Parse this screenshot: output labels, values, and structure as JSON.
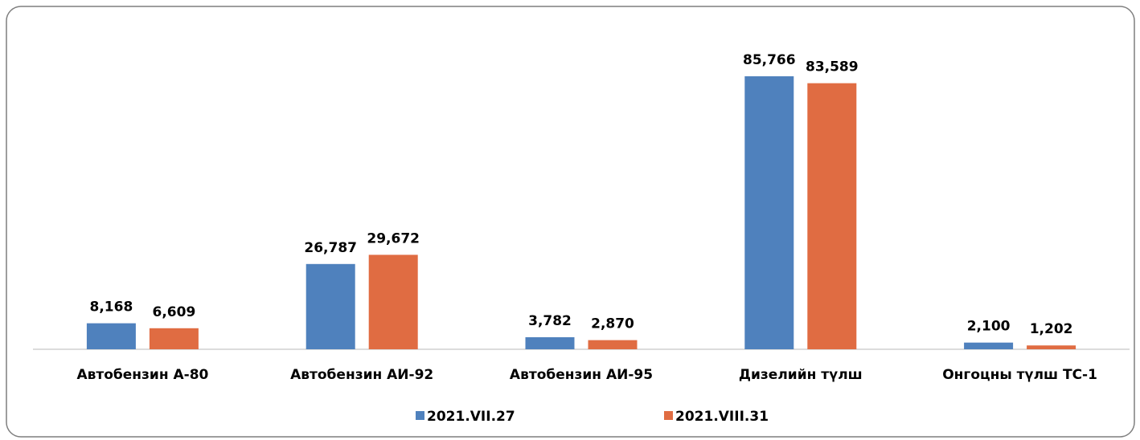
{
  "chart_data": {
    "type": "bar",
    "categories": [
      "Автобензин А-80",
      "Автобензин АИ-92",
      "Автобензин АИ-95",
      "Дизелийн түлш",
      "Онгоцны түлш ТС-1"
    ],
    "series": [
      {
        "name": "2021.VII.27",
        "color": "#4f81bd",
        "values": [
          8168,
          26787,
          3782,
          85766,
          2100
        ],
        "value_labels": [
          "8,168",
          "26,787",
          "3,782",
          "85,766",
          "2,100"
        ]
      },
      {
        "name": "2021.VIII.31",
        "color": "#e06c42",
        "values": [
          6609,
          29672,
          2870,
          83589,
          1202
        ],
        "value_labels": [
          "6,609",
          "29,672",
          "2,870",
          "83,589",
          "1,202"
        ]
      }
    ],
    "legend": "bottom"
  }
}
